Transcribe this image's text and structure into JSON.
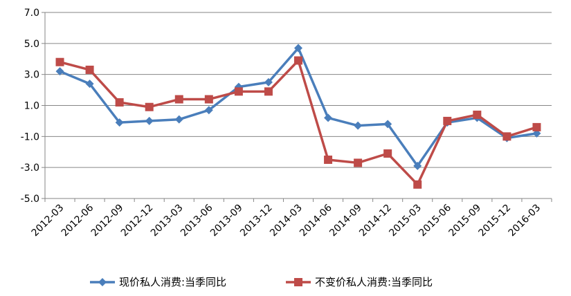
{
  "chart_data": {
    "type": "line",
    "title": "",
    "xlabel": "",
    "ylabel": "",
    "ylim": [
      -5.0,
      7.0
    ],
    "y_ticks": [
      "7.0",
      "5.0",
      "3.0",
      "1.0",
      "-1.0",
      "-3.0",
      "-5.0"
    ],
    "y_tick_values": [
      7,
      5,
      3,
      1,
      -1,
      -3,
      -5
    ],
    "grid": "horizontal",
    "legend_position": "bottom",
    "categories": [
      "2012-03",
      "2012-06",
      "2012-09",
      "2012-12",
      "2013-03",
      "2013-06",
      "2013-09",
      "2013-12",
      "2014-03",
      "2014-06",
      "2014-09",
      "2014-12",
      "2015-03",
      "2015-06",
      "2015-09",
      "2015-12",
      "2016-03"
    ],
    "series": [
      {
        "name": "现价私人消费:当季同比",
        "color": "#4A7EBB",
        "marker": "diamond",
        "values": [
          3.2,
          2.4,
          -0.1,
          0.0,
          0.1,
          0.7,
          2.2,
          2.5,
          4.7,
          0.2,
          -0.3,
          -0.2,
          -2.9,
          -0.1,
          0.2,
          -1.1,
          -0.8
        ]
      },
      {
        "name": "不变价私人消费:当季同比",
        "color": "#BE4B48",
        "marker": "square",
        "values": [
          3.8,
          3.3,
          1.2,
          0.9,
          1.4,
          1.4,
          1.9,
          1.9,
          3.9,
          -2.5,
          -2.7,
          -2.1,
          -4.1,
          0.0,
          0.4,
          -1.0,
          -0.4
        ]
      }
    ]
  }
}
